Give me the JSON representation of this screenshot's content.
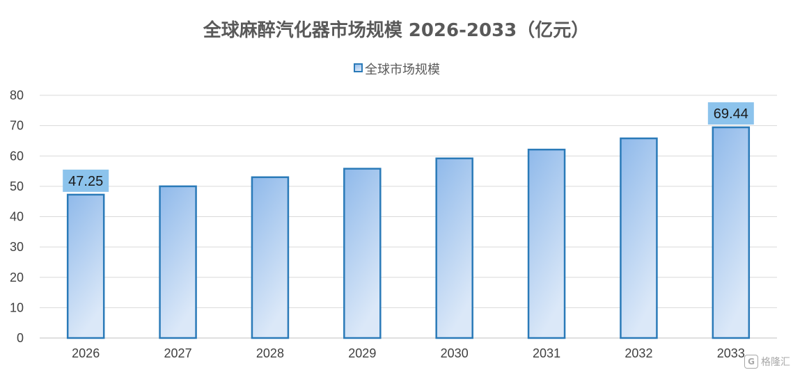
{
  "chart_data": {
    "type": "bar",
    "title": "全球麻醉汽化器市场规模 2026-2033（亿元）",
    "legend": {
      "placement": "top-center",
      "entries": [
        "全球市场规模"
      ]
    },
    "categories": [
      "2026",
      "2027",
      "2028",
      "2029",
      "2030",
      "2031",
      "2032",
      "2033"
    ],
    "series": [
      {
        "name": "全球市场规模",
        "values": [
          47.25,
          50.0,
          53.0,
          55.8,
          59.2,
          62.1,
          65.8,
          69.44
        ]
      }
    ],
    "data_labels": {
      "2026": "47.25",
      "2033": "69.44"
    },
    "xlabel": "",
    "ylabel": "",
    "ylim": [
      0,
      80
    ],
    "yticks": [
      "0",
      "10",
      "20",
      "30",
      "40",
      "50",
      "60",
      "70",
      "80"
    ],
    "grid": true,
    "colors": {
      "bar_fill_top": "#8fb9ea",
      "bar_fill_bottom": "#dbe8f8",
      "bar_stroke": "#2a7ab8",
      "label_box": "#8cc3ec",
      "grid": "#d9d9d9",
      "title": "#595959",
      "text": "#404040"
    }
  },
  "watermark": {
    "text": "格隆汇",
    "icon": "gelonghui-logo-icon"
  }
}
